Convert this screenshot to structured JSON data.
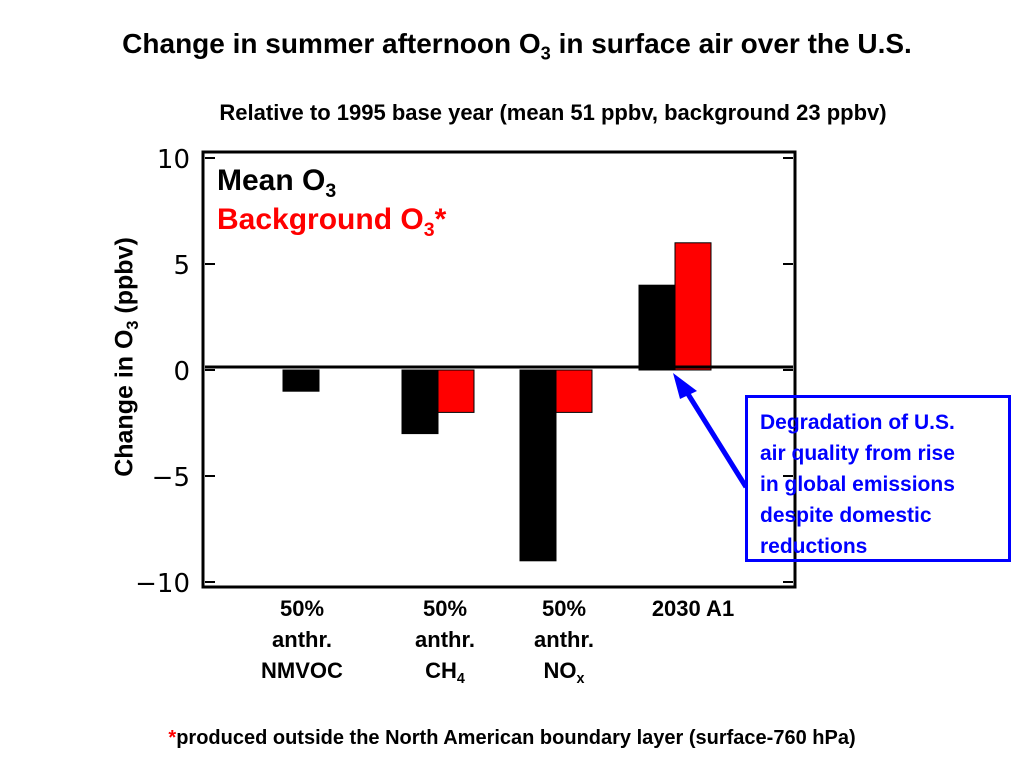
{
  "title": {
    "main": "Change in summer afternoon O",
    "sub": "3",
    "rest": " in surface air over the U.S."
  },
  "subtitle": "Relative to 1995 base year (mean 51 ppbv, background 23 ppbv)",
  "colors": {
    "mean": "#000000",
    "background": "#ff0000",
    "annotation": "#0000ff"
  },
  "chart_data": {
    "type": "bar",
    "categories": [
      "50% anthr. NMVOC",
      "50% anthr. CH4",
      "50% anthr. NOx",
      "2030 A1"
    ],
    "series": [
      {
        "name": "Mean O3",
        "values": [
          -1,
          -3,
          -9,
          4
        ]
      },
      {
        "name": "Background O3*",
        "values": [
          0,
          -2,
          -2,
          6
        ]
      }
    ],
    "ylim": [
      -10,
      10
    ],
    "yticks": [
      10,
      5,
      0,
      -5,
      -10
    ],
    "ytick_labels": [
      "10",
      "5",
      "0",
      "−5",
      "−10"
    ],
    "ylabel": {
      "main": "Change in O",
      "sub": "3",
      "rest": " (ppbv)"
    },
    "legend": {
      "mean": {
        "main": "Mean O",
        "sub": "3",
        "rest": ""
      },
      "background": {
        "main": "Background O",
        "sub": "3",
        "rest": "*"
      },
      "placement": "top-left"
    },
    "category_labels": [
      {
        "line1": "50%",
        "line2": "anthr.",
        "line3": "NMVOC",
        "line3_sub": ""
      },
      {
        "line1": "50%",
        "line2": "anthr.",
        "line3": "CH",
        "line3_sub": "4"
      },
      {
        "line1": "50%",
        "line2": "anthr.",
        "line3": "NO",
        "line3_sub": "x"
      },
      {
        "line1": "2030 A1",
        "line2": "",
        "line3": "",
        "line3_sub": ""
      }
    ],
    "grid": false
  },
  "annotation": {
    "lines": [
      "Degradation of U.S.",
      "air quality from rise",
      "in global emissions",
      "despite domestic",
      "reductions"
    ]
  },
  "footnote": {
    "star": "*",
    "text": "produced outside the North American boundary layer (surface-760 hPa)"
  }
}
